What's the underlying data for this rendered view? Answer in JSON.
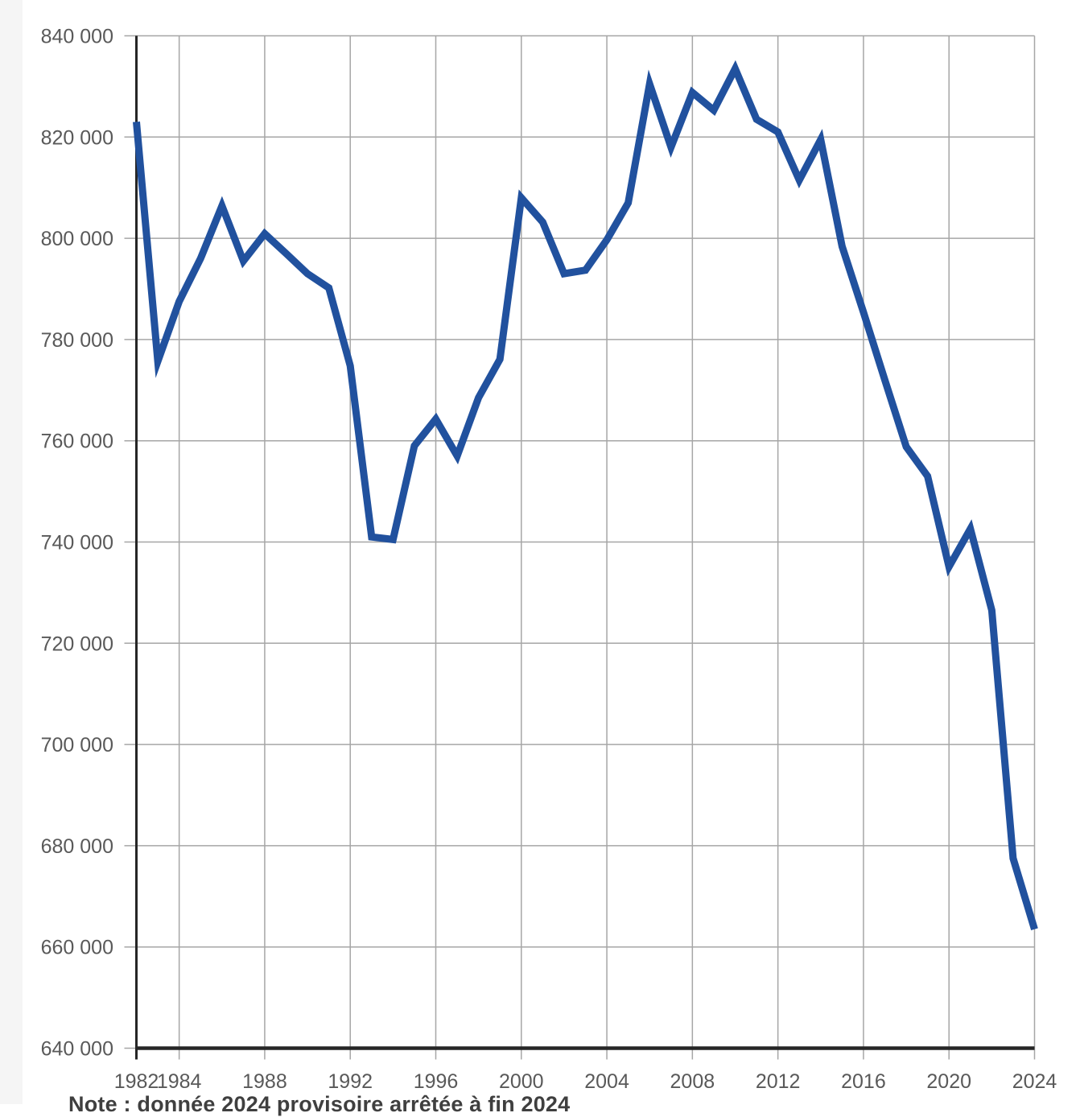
{
  "page": {
    "background": "#FFFFFF",
    "left_gutter_color": "#F5F5F5"
  },
  "note": {
    "text": "Note : donnée 2024 provisoire arrêtée à fin 2024",
    "color": "#3F3F3F"
  },
  "chart_data": {
    "type": "line",
    "title": "",
    "xlabel": "",
    "ylabel": "",
    "legend": "none",
    "grid": true,
    "x": [
      1982,
      1983,
      1984,
      1985,
      1986,
      1987,
      1988,
      1989,
      1990,
      1991,
      1992,
      1993,
      1994,
      1995,
      1996,
      1997,
      1998,
      1999,
      2000,
      2001,
      2002,
      2003,
      2004,
      2005,
      2006,
      2007,
      2008,
      2009,
      2010,
      2011,
      2012,
      2013,
      2014,
      2015,
      2016,
      2017,
      2018,
      2019,
      2020,
      2021,
      2022,
      2023,
      2024
    ],
    "values": [
      823000,
      775700,
      787500,
      796000,
      806400,
      795500,
      800900,
      797000,
      793000,
      790200,
      774800,
      741000,
      740500,
      759000,
      764300,
      757000,
      768500,
      776100,
      808000,
      803200,
      793000,
      793700,
      799700,
      807000,
      830500,
      818000,
      828800,
      825300,
      833500,
      823500,
      821000,
      811500,
      819500,
      798400,
      785400,
      772000,
      758800,
      753000,
      735100,
      742600,
      726500,
      677500,
      663500
    ],
    "ylim": [
      640000,
      840000
    ],
    "y_tick_interval": 20000,
    "y_tick_labels": [
      "840 000",
      "820 000",
      "800 000",
      "780 000",
      "760 000",
      "740 000",
      "720 000",
      "700 000",
      "680 000",
      "660 000",
      "640 000"
    ],
    "x_tick_years": [
      1982,
      1984,
      1988,
      1992,
      1996,
      2000,
      2004,
      2008,
      2012,
      2016,
      2020,
      2024
    ],
    "x_tick_labels": [
      "1982",
      "1984",
      "1988",
      "1992",
      "1996",
      "2000",
      "2004",
      "2008",
      "2012",
      "2016",
      "2020",
      "2024"
    ],
    "line_color": "#21519E",
    "gridline_color": "#A6A6A6",
    "axis_color": "#262626",
    "tick_label_color": "#595959"
  }
}
